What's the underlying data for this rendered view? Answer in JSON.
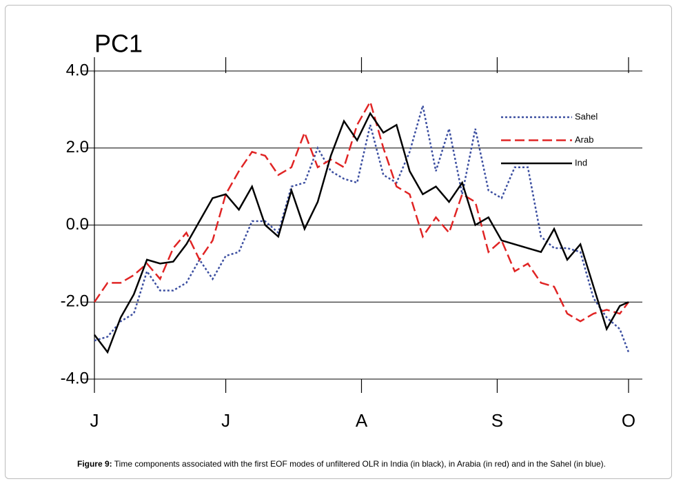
{
  "chart_data": {
    "type": "line",
    "title": "PC1",
    "x": [
      0,
      3,
      6,
      9,
      12,
      15,
      18,
      21,
      24,
      27,
      30,
      33,
      36,
      39,
      42,
      45,
      48,
      51,
      54,
      57,
      60,
      63,
      66,
      69,
      72,
      75,
      78,
      81,
      84,
      87,
      90,
      93,
      96,
      99,
      102,
      105,
      108,
      111,
      114,
      117,
      120,
      122
    ],
    "xlim": [
      0,
      122
    ],
    "xticks": [
      {
        "value": 0,
        "label": "J"
      },
      {
        "value": 30,
        "label": "J"
      },
      {
        "value": 61,
        "label": "A"
      },
      {
        "value": 92,
        "label": "S"
      },
      {
        "value": 122,
        "label": "O"
      }
    ],
    "ylim": [
      -4,
      4
    ],
    "yticks": [
      {
        "value": -4,
        "label": "-4.0"
      },
      {
        "value": -2,
        "label": "-2.0"
      },
      {
        "value": 0,
        "label": "0.0"
      },
      {
        "value": 2,
        "label": "2.0"
      },
      {
        "value": 4,
        "label": "4.0"
      }
    ],
    "grid": true,
    "legend": "upper right",
    "series": [
      {
        "name": "Sahel",
        "color": "#3b4ea0",
        "dash": "dotted",
        "values": [
          -3.0,
          -2.9,
          -2.5,
          -2.3,
          -1.2,
          -1.7,
          -1.7,
          -1.5,
          -0.9,
          -1.4,
          -0.8,
          -0.7,
          0.1,
          0.1,
          -0.2,
          1.0,
          1.1,
          2.0,
          1.4,
          1.2,
          1.1,
          2.6,
          1.3,
          1.1,
          1.9,
          3.1,
          1.4,
          2.5,
          0.8,
          2.5,
          0.9,
          0.7,
          1.5,
          1.5,
          -0.3,
          -0.6,
          -0.6,
          -0.7,
          -1.9,
          -2.4,
          -2.7,
          -3.3
        ]
      },
      {
        "name": "Arab",
        "color": "#e02424",
        "dash": "dashed",
        "values": [
          -2.0,
          -1.5,
          -1.5,
          -1.3,
          -1.0,
          -1.4,
          -0.6,
          -0.2,
          -0.9,
          -0.4,
          0.8,
          1.4,
          1.9,
          1.8,
          1.3,
          1.5,
          2.4,
          1.5,
          1.7,
          1.5,
          2.6,
          3.2,
          2.0,
          1.0,
          0.8,
          -0.3,
          0.2,
          -0.2,
          0.8,
          0.6,
          -0.7,
          -0.4,
          -1.2,
          -1.0,
          -1.5,
          -1.6,
          -2.3,
          -2.5,
          -2.3,
          -2.2,
          -2.3,
          -2.0
        ]
      },
      {
        "name": "Ind",
        "color": "#000000",
        "dash": "solid",
        "values": [
          -2.85,
          -3.3,
          -2.4,
          -1.8,
          -0.9,
          -1.0,
          -0.95,
          -0.5,
          0.1,
          0.7,
          0.8,
          0.4,
          1.0,
          0.0,
          -0.3,
          0.9,
          -0.1,
          0.6,
          1.8,
          2.7,
          2.2,
          2.9,
          2.4,
          2.6,
          1.4,
          0.8,
          1.0,
          0.6,
          1.1,
          0.0,
          0.2,
          -0.4,
          -0.5,
          -0.6,
          -0.7,
          -0.1,
          -0.9,
          -0.5,
          -1.6,
          -2.7,
          -2.1,
          -2.0
        ]
      }
    ]
  },
  "caption": {
    "label": "Figure 9:",
    "text": "Time components associated with the first EOF modes of unfiltered OLR in India (in black), in Arabia (in red) and in the Sahel (in blue)."
  }
}
